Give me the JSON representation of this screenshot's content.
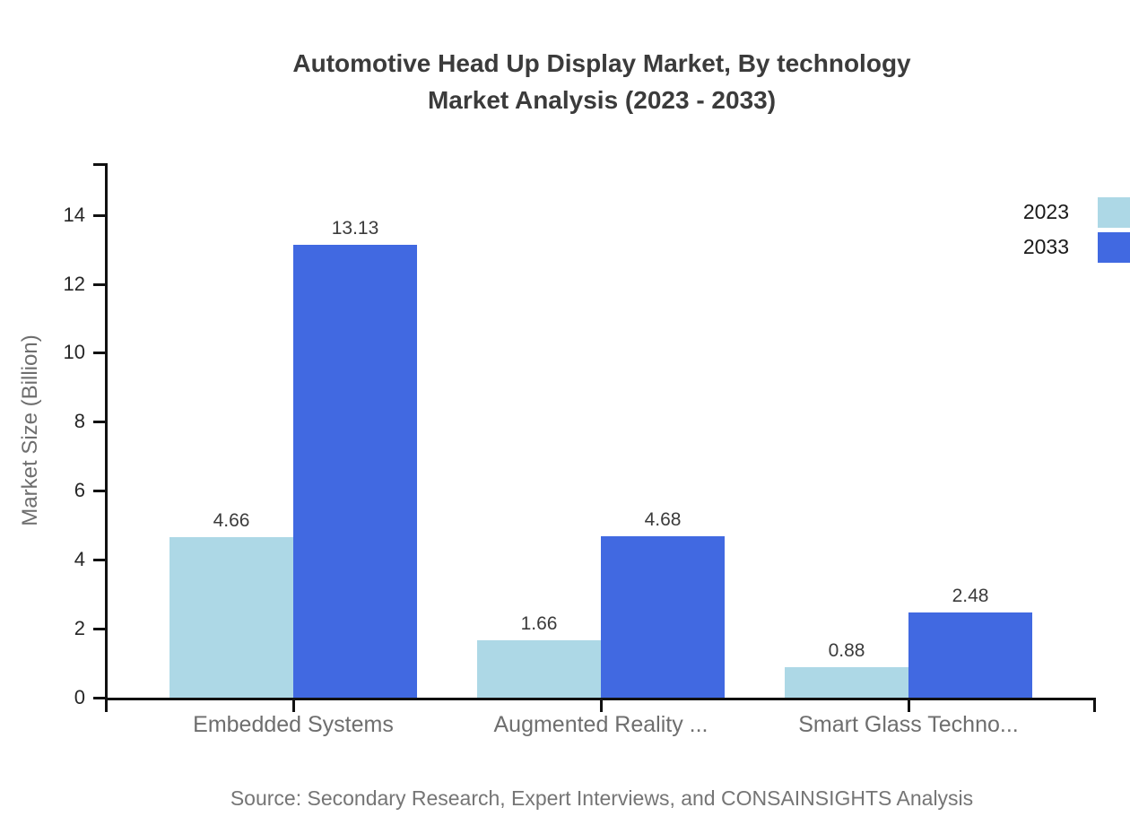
{
  "chart": {
    "title_lines": [
      "Automotive Head Up Display Market, By technology",
      "Market Analysis (2023 - 2033)"
    ],
    "source": "Source: Secondary Research, Expert Interviews, and CONSAINSIGHTS Analysis"
  },
  "chart_data": {
    "type": "bar",
    "title": "Automotive Head Up Display Market, By technology Market Analysis (2023 - 2033)",
    "categories": [
      "Embedded Systems",
      "Augmented Reality ...",
      "Smart Glass Techno..."
    ],
    "series": [
      {
        "name": "2023",
        "color": "#add8e6",
        "values": [
          4.66,
          1.66,
          0.88
        ]
      },
      {
        "name": "2033",
        "color": "#4169e1",
        "values": [
          13.13,
          4.68,
          2.48
        ]
      }
    ],
    "xlabel": "",
    "ylabel": "Market Size (Billion)",
    "ylim": [
      0,
      15.5
    ],
    "yticks": [
      0,
      2,
      4,
      6,
      8,
      10,
      12,
      14
    ],
    "grid": false,
    "legend_position": "top-right",
    "value_labels": true,
    "axis_color": "#111111"
  }
}
